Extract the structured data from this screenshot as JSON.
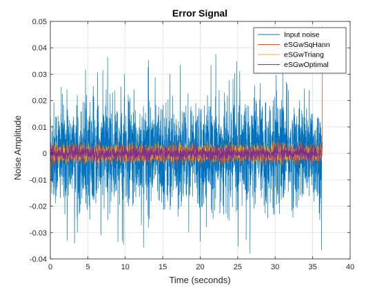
{
  "chart_data": {
    "type": "line",
    "title": "Error Signal",
    "xlabel": "Time (seconds)",
    "ylabel": "Noise Amplitude",
    "xlim": [
      0,
      40
    ],
    "ylim": [
      -0.04,
      0.05
    ],
    "xticks": [
      0,
      5,
      10,
      15,
      20,
      25,
      30,
      35,
      40
    ],
    "yticks": [
      -0.04,
      -0.03,
      -0.02,
      -0.01,
      0,
      0.01,
      0.02,
      0.03,
      0.04,
      0.05
    ],
    "xtick_labels": [
      "0",
      "5",
      "10",
      "15",
      "20",
      "25",
      "30",
      "35",
      "40"
    ],
    "ytick_labels": [
      "-0.04",
      "-0.03",
      "-0.02",
      "-0.01",
      "0",
      "0.01",
      "0.02",
      "0.03",
      "0.04",
      "0.05"
    ],
    "grid": true,
    "legend_position": "top-right",
    "series": [
      {
        "name": "Input noise",
        "color": "#0072BD",
        "x_range": [
          0,
          36.2
        ],
        "mean": 0.0,
        "approx_std": 0.0095,
        "approx_min": -0.039,
        "approx_max": 0.038
      },
      {
        "name": "eSGwSqHann",
        "color": "#D95319",
        "x_range": [
          0,
          36.3
        ],
        "mean": 0.0,
        "approx_std": 0.0018,
        "approx_min": -0.02,
        "approx_max": 0.048,
        "note": "spikes near start (about -0.02) and end (about 0.048)"
      },
      {
        "name": "eSGwTriang",
        "color": "#EDB120",
        "x_range": [
          0,
          36.2
        ],
        "mean": 0.0,
        "approx_std": 0.0016,
        "approx_min": -0.005,
        "approx_max": 0.005
      },
      {
        "name": "eSGwOptimal",
        "color": "#7E2F8E",
        "x_range": [
          0,
          36.2
        ],
        "mean": 0.0,
        "approx_std": 0.0014,
        "approx_min": -0.004,
        "approx_max": 0.004
      }
    ]
  }
}
